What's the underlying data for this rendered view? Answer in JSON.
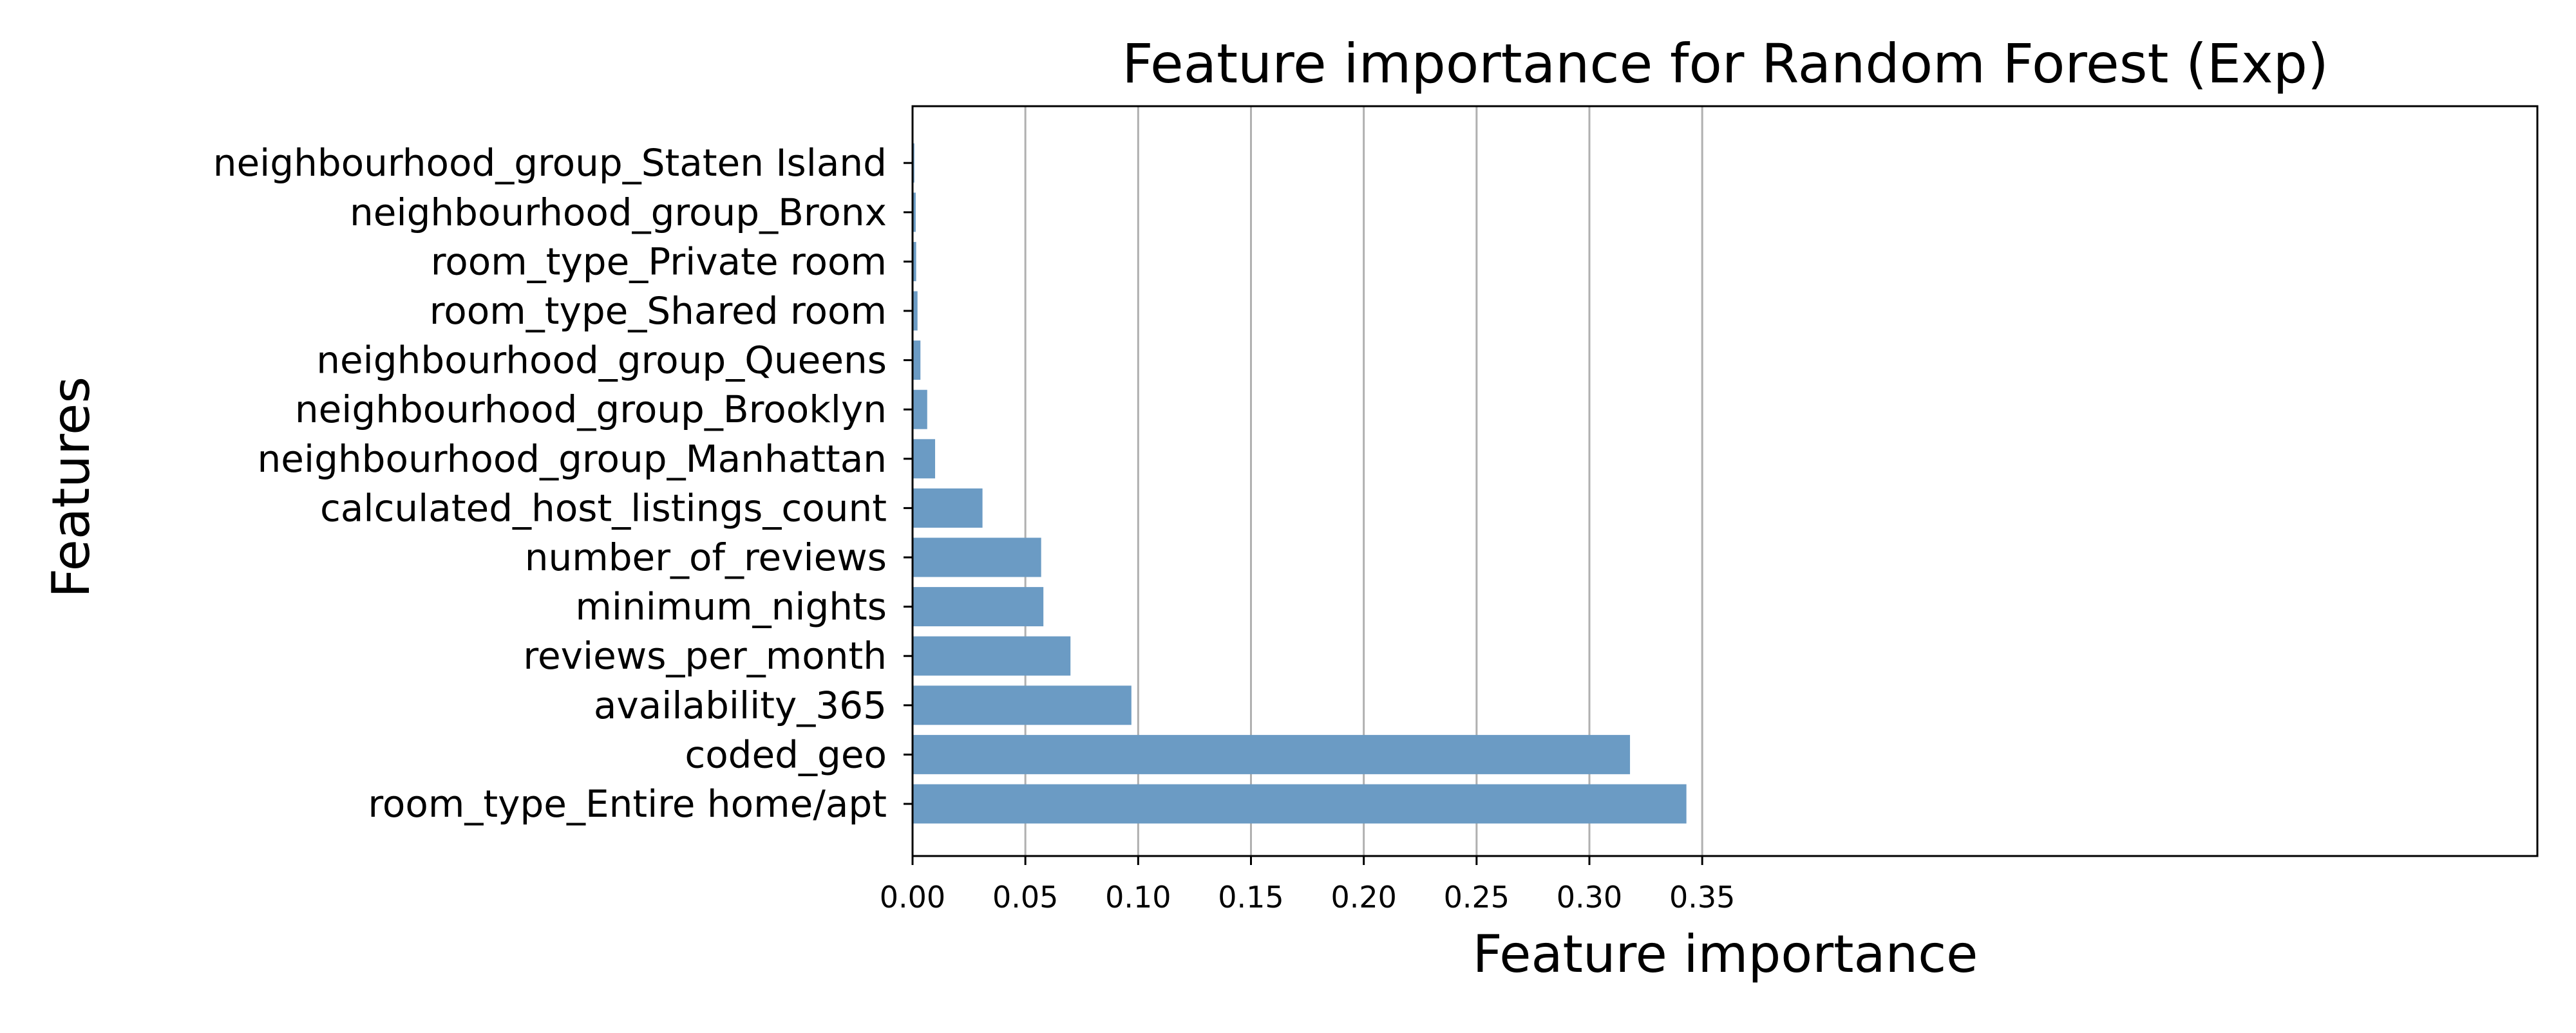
{
  "chart_data": {
    "type": "bar",
    "orientation": "horizontal",
    "title": "Feature importance for Random Forest (Exp)",
    "xlabel": "Feature importance",
    "ylabel": "Features",
    "xlim": [
      0,
      0.36
    ],
    "grid": "x",
    "x_ticks": [
      "0.00",
      "0.05",
      "0.10",
      "0.15",
      "0.20",
      "0.25",
      "0.30",
      "0.35"
    ],
    "bar_color": "#6b9bc4",
    "categories": [
      "room_type_Entire home/apt",
      "coded_geo",
      "availability_365",
      "reviews_per_month",
      "minimum_nights",
      "number_of_reviews",
      "calculated_host_listings_count",
      "neighbourhood_group_Manhattan",
      "neighbourhood_group_Brooklyn",
      "neighbourhood_group_Queens",
      "room_type_Shared room",
      "room_type_Private room",
      "neighbourhood_group_Bronx",
      "neighbourhood_group_Staten Island"
    ],
    "values": [
      0.343,
      0.318,
      0.097,
      0.07,
      0.058,
      0.057,
      0.031,
      0.01,
      0.0065,
      0.0035,
      0.0022,
      0.0016,
      0.0014,
      0.0008
    ]
  }
}
